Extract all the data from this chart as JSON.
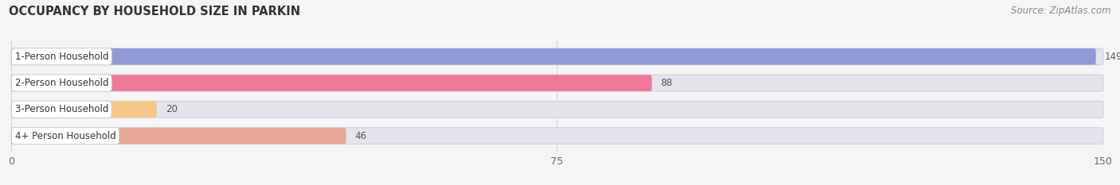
{
  "title": "OCCUPANCY BY HOUSEHOLD SIZE IN PARKIN",
  "source": "Source: ZipAtlas.com",
  "categories": [
    "1-Person Household",
    "2-Person Household",
    "3-Person Household",
    "4+ Person Household"
  ],
  "values": [
    149,
    88,
    20,
    46
  ],
  "bar_colors": [
    "#9099d8",
    "#f07898",
    "#f5c888",
    "#e8a898"
  ],
  "xlim": [
    0,
    150
  ],
  "xticks": [
    0,
    75,
    150
  ],
  "background_color": "#f5f5f8",
  "bar_background_color": "#e4e4ec",
  "title_fontsize": 10.5,
  "source_fontsize": 8.5,
  "label_fontsize": 8.5,
  "value_fontsize": 8.5,
  "bar_height": 0.62
}
